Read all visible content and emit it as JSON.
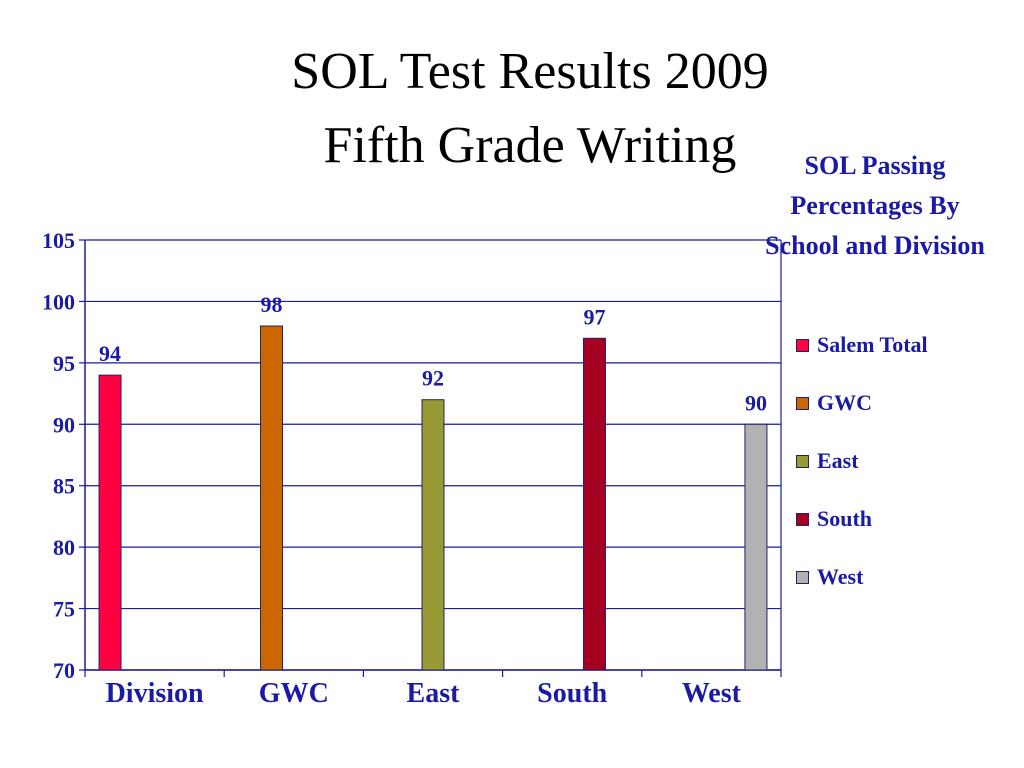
{
  "title_line1": "SOL Test Results 2009",
  "title_line2": "Fifth Grade Writing",
  "chart_data": {
    "type": "bar",
    "categories": [
      "Division",
      "GWC",
      "East",
      "South",
      "West"
    ],
    "values": [
      94,
      98,
      92,
      97,
      90
    ],
    "data_labels": [
      "94",
      "98",
      "92",
      "97",
      "90"
    ],
    "ylim": [
      70,
      105
    ],
    "yticks": [
      70,
      75,
      80,
      85,
      90,
      95,
      100,
      105
    ],
    "grid": true,
    "legend_title": "SOL Passing Percentages  By School and Division",
    "legend_placement": "right",
    "series": [
      {
        "name": "Salem Total",
        "value": 94,
        "color": "#ff0040"
      },
      {
        "name": "GWC",
        "value": 98,
        "color": "#cc6600"
      },
      {
        "name": "East",
        "value": 92,
        "color": "#999933"
      },
      {
        "name": "South",
        "value": 97,
        "color": "#a50021"
      },
      {
        "name": "West",
        "value": 90,
        "color": "#b2b2b2"
      }
    ],
    "colors": {
      "text": "#1a1aa6",
      "axis": "#1a1aa6",
      "grid": "#1a1aa6",
      "bar_outline": "#222266"
    }
  }
}
